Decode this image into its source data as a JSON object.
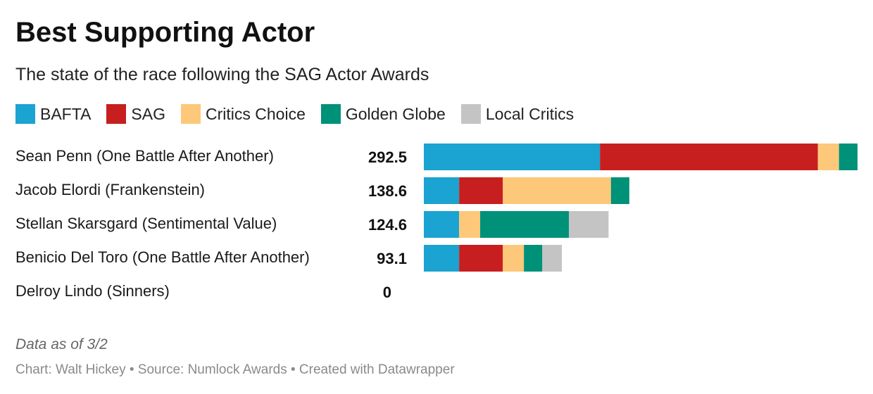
{
  "chart_data": {
    "type": "bar",
    "stacked": true,
    "orientation": "horizontal",
    "title": "Best Supporting Actor",
    "subtitle": "The state of the race following the SAG Actor Awards",
    "legend_position": "top-left",
    "grid": false,
    "xlim": [
      0,
      292.5
    ],
    "categories": [
      "Sean Penn (One Battle After Another)",
      "Jacob Elordi (Frankenstein)",
      "Stellan Skarsgard (Sentimental Value)",
      "Benicio Del Toro (One Battle After Another)",
      "Delroy Lindo (Sinners)"
    ],
    "totals": [
      "292.5",
      "138.6",
      "124.6",
      "93.1",
      "0"
    ],
    "series": [
      {
        "name": "BAFTA",
        "color": "#1ba3d1",
        "values": [
          118.8,
          23.8,
          23.8,
          23.8,
          0
        ]
      },
      {
        "name": "SAG",
        "color": "#c71f1f",
        "values": [
          147.0,
          29.5,
          0,
          29.5,
          0
        ]
      },
      {
        "name": "Critics Choice",
        "color": "#fdc879",
        "values": [
          14.2,
          72.9,
          14.2,
          14.2,
          0
        ]
      },
      {
        "name": "Golden Globe",
        "color": "#009179",
        "values": [
          12.5,
          12.4,
          59.9,
          12.4,
          0
        ]
      },
      {
        "name": "Local Critics",
        "color": "#c4c4c4",
        "values": [
          0,
          0,
          26.7,
          13.2,
          0
        ]
      }
    ]
  },
  "note": "Data as of 3/2",
  "footer": "Chart: Walt Hickey • Source: Numlock Awards • Created with Datawrapper"
}
